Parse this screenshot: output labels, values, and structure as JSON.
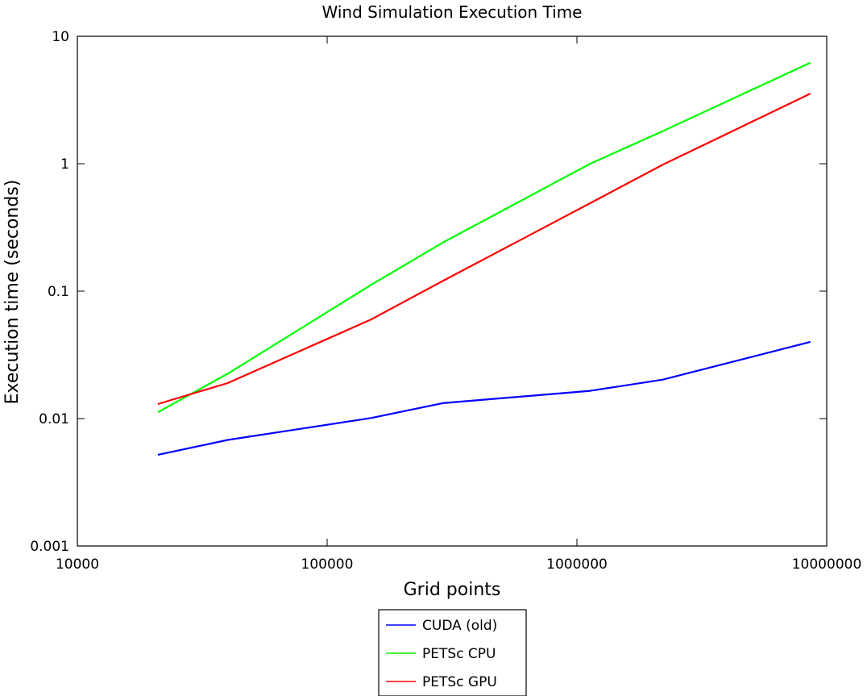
{
  "chart_data": {
    "type": "line",
    "title": "Wind Simulation Execution Time",
    "xlabel": "Grid points",
    "ylabel": "Execution time (seconds)",
    "xscale": "log",
    "yscale": "log",
    "xlim": [
      10000,
      10000000
    ],
    "ylim": [
      0.001,
      10
    ],
    "xticks": [
      "10000",
      "100000",
      "1000000",
      "10000000"
    ],
    "yticks": [
      "0.001",
      "0.01",
      "0.1",
      "1",
      "10"
    ],
    "x": [
      21000,
      40000,
      150000,
      290000,
      1130000,
      2200000,
      8600000
    ],
    "series": [
      {
        "name": "CUDA (old)",
        "color": "#0000ff",
        "values": [
          0.0052,
          0.0068,
          0.0101,
          0.0132,
          0.0165,
          0.0202,
          0.04
        ]
      },
      {
        "name": "PETSc CPU",
        "color": "#00ff00",
        "values": [
          0.0112,
          0.0225,
          0.112,
          0.24,
          1.0,
          1.8,
          6.2
        ]
      },
      {
        "name": "PETSc GPU",
        "color": "#ff0000",
        "values": [
          0.013,
          0.019,
          0.06,
          0.12,
          0.49,
          0.98,
          3.55
        ]
      }
    ],
    "grid": false,
    "legend_position": "bottom-outside"
  }
}
